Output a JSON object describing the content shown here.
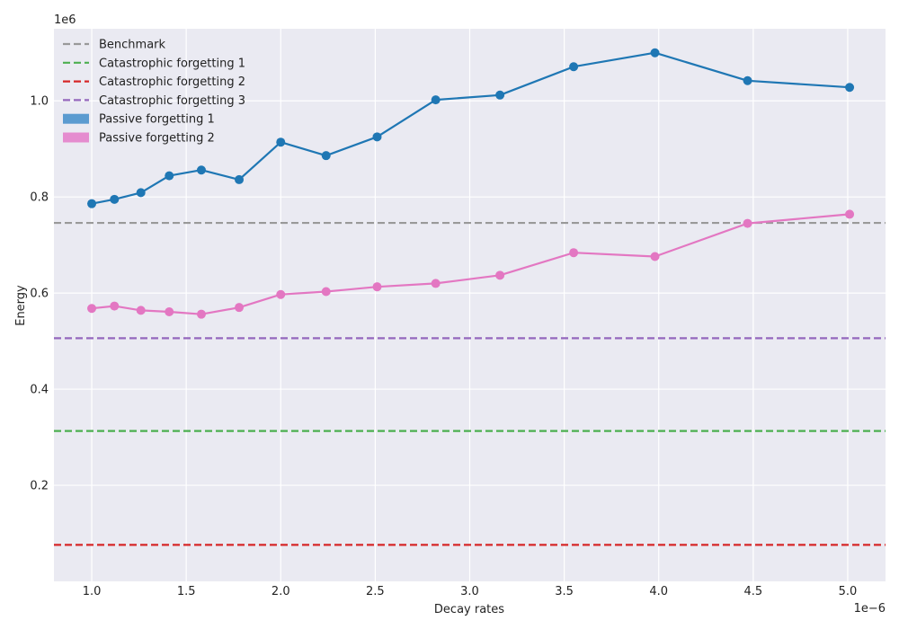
{
  "chart_data": {
    "type": "line",
    "title": "",
    "xlabel": "Decay rates",
    "ylabel": "Energy",
    "x_offset_label": "1e−6",
    "y_offset_label": "1e6",
    "xlim": [
      0.8,
      5.2
    ],
    "ylim": [
      0.0,
      1.15
    ],
    "xticks": [
      1.0,
      1.5,
      2.0,
      2.5,
      3.0,
      3.5,
      4.0,
      4.5,
      5.0
    ],
    "xtick_labels": [
      "1.0",
      "1.5",
      "2.0",
      "2.5",
      "3.0",
      "3.5",
      "4.0",
      "4.5",
      "5.0"
    ],
    "yticks": [
      0.2,
      0.4,
      0.6,
      0.8,
      1.0
    ],
    "ytick_labels": [
      "0.2",
      "0.4",
      "0.6",
      "0.8",
      "1.0"
    ],
    "grid": true,
    "legend_position": "top-left",
    "x": [
      1.0,
      1.12,
      1.26,
      1.41,
      1.58,
      1.78,
      2.0,
      2.24,
      2.51,
      2.82,
      3.16,
      3.55,
      3.98,
      4.47,
      5.01
    ],
    "series": [
      {
        "name": "Passive forgetting 1",
        "color": "#1f77b4",
        "legend_style": "patch",
        "values": [
          0.786,
          0.795,
          0.809,
          0.844,
          0.856,
          0.836,
          0.914,
          0.886,
          0.925,
          1.002,
          1.012,
          1.071,
          1.1,
          1.042,
          1.028
        ]
      },
      {
        "name": "Passive forgetting 2",
        "color": "#e377c2",
        "legend_style": "patch",
        "values": [
          0.568,
          0.573,
          0.564,
          0.561,
          0.556,
          0.57,
          0.597,
          0.603,
          0.613,
          0.62,
          0.637,
          0.684,
          0.676,
          0.745,
          0.764
        ]
      }
    ],
    "reference_lines": [
      {
        "name": "Benchmark",
        "color": "#999999",
        "y": 0.746
      },
      {
        "name": "Catastrophic forgetting 1",
        "color": "#4caf50",
        "y": 0.313
      },
      {
        "name": "Catastrophic forgetting 2",
        "color": "#d62728",
        "y": 0.076
      },
      {
        "name": "Catastrophic forgetting 3",
        "color": "#9467bd",
        "y": 0.506
      }
    ],
    "legend": [
      {
        "label": "Benchmark",
        "color": "#999999",
        "style": "dashed"
      },
      {
        "label": "Catastrophic forgetting 1",
        "color": "#4caf50",
        "style": "dashed"
      },
      {
        "label": "Catastrophic forgetting 2",
        "color": "#d62728",
        "style": "dashed"
      },
      {
        "label": "Catastrophic forgetting 3",
        "color": "#9467bd",
        "style": "dashed"
      },
      {
        "label": "Passive forgetting 1",
        "color": "#5b9bd0",
        "style": "patch"
      },
      {
        "label": "Passive forgetting 2",
        "color": "#e58ccf",
        "style": "patch"
      }
    ],
    "plot_background": "#eaeaf2"
  }
}
